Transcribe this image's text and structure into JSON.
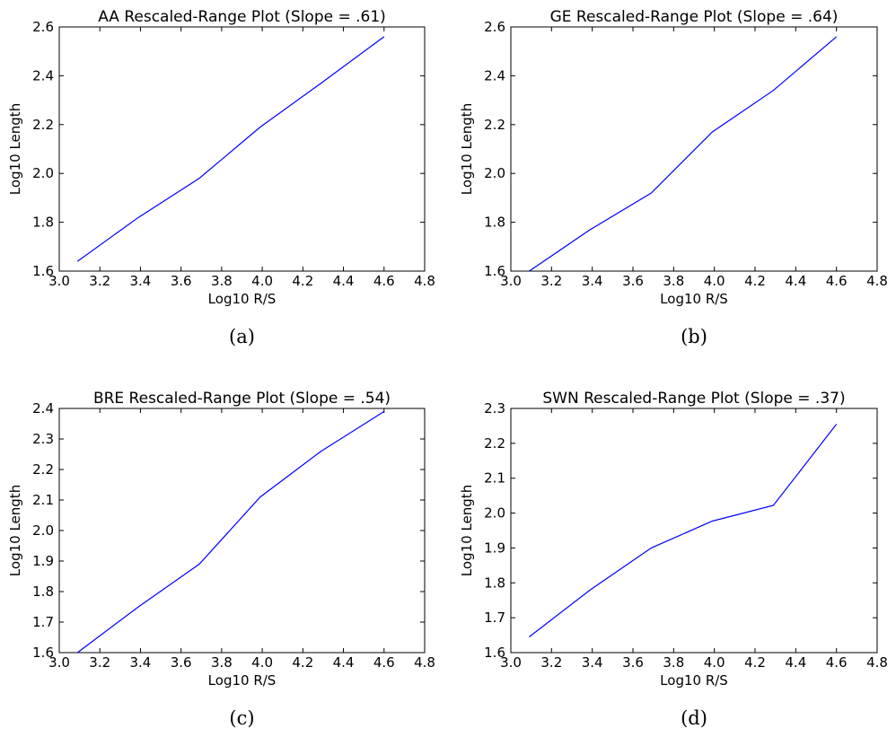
{
  "chart_data": [
    {
      "type": "line",
      "title": "AA Rescaled-Range Plot (Slope = .61)",
      "xlabel": "Log10 R/S",
      "ylabel": "Log10 Length",
      "xlim": [
        3.0,
        4.8
      ],
      "ylim": [
        1.6,
        2.6
      ],
      "xticks": [
        "3.0",
        "3.2",
        "3.4",
        "3.6",
        "3.8",
        "4.0",
        "4.2",
        "4.4",
        "4.6",
        "4.8"
      ],
      "yticks": [
        "1.6",
        "1.8",
        "2.0",
        "2.2",
        "2.4",
        "2.6"
      ],
      "series": [
        {
          "x": [
            3.09,
            3.39,
            3.69,
            3.99,
            4.29,
            4.6
          ],
          "y": [
            1.64,
            1.82,
            1.98,
            2.19,
            2.37,
            2.56
          ]
        }
      ],
      "caption": "(a)",
      "line_color": "#0000ff",
      "grid": false
    },
    {
      "type": "line",
      "title": "GE Rescaled-Range Plot (Slope = .64)",
      "xlabel": "Log10 R/S",
      "ylabel": "Log10 Length",
      "xlim": [
        3.0,
        4.8
      ],
      "ylim": [
        1.6,
        2.6
      ],
      "xticks": [
        "3.0",
        "3.2",
        "3.4",
        "3.6",
        "3.8",
        "4.0",
        "4.2",
        "4.4",
        "4.6",
        "4.8"
      ],
      "yticks": [
        "1.6",
        "1.8",
        "2.0",
        "2.2",
        "2.4",
        "2.6"
      ],
      "series": [
        {
          "x": [
            3.09,
            3.39,
            3.69,
            3.99,
            4.29,
            4.6
          ],
          "y": [
            1.6,
            1.77,
            1.92,
            2.17,
            2.34,
            2.56
          ]
        }
      ],
      "caption": "(b)",
      "line_color": "#0000ff",
      "grid": false
    },
    {
      "type": "line",
      "title": "BRE Rescaled-Range Plot (Slope = .54)",
      "xlabel": "Log10 R/S",
      "ylabel": "Log10 Length",
      "xlim": [
        3.0,
        4.8
      ],
      "ylim": [
        1.6,
        2.4
      ],
      "xticks": [
        "3.0",
        "3.2",
        "3.4",
        "3.6",
        "3.8",
        "4.0",
        "4.2",
        "4.4",
        "4.6",
        "4.8"
      ],
      "yticks": [
        "1.6",
        "1.7",
        "1.8",
        "1.9",
        "2.0",
        "2.1",
        "2.2",
        "2.3",
        "2.4"
      ],
      "series": [
        {
          "x": [
            3.09,
            3.39,
            3.69,
            3.99,
            4.29,
            4.6
          ],
          "y": [
            1.6,
            1.75,
            1.89,
            2.11,
            2.26,
            2.39
          ]
        }
      ],
      "caption": "(c)",
      "line_color": "#0000ff",
      "grid": false
    },
    {
      "type": "line",
      "title": "SWN Rescaled-Range Plot (Slope = .37)",
      "xlabel": "Log10 R/S",
      "ylabel": "Log10 Length",
      "xlim": [
        3.0,
        4.8
      ],
      "ylim": [
        1.6,
        2.3
      ],
      "xticks": [
        "3.0",
        "3.2",
        "3.4",
        "3.6",
        "3.8",
        "4.0",
        "4.2",
        "4.4",
        "4.6",
        "4.8"
      ],
      "yticks": [
        "1.6",
        "1.7",
        "1.8",
        "1.9",
        "2.0",
        "2.1",
        "2.2",
        "2.3"
      ],
      "series": [
        {
          "x": [
            3.09,
            3.39,
            3.69,
            3.99,
            4.29,
            4.6
          ],
          "y": [
            1.645,
            1.78,
            1.9,
            1.977,
            2.022,
            2.255
          ]
        }
      ],
      "caption": "(d)",
      "line_color": "#0000ff",
      "grid": false
    }
  ]
}
